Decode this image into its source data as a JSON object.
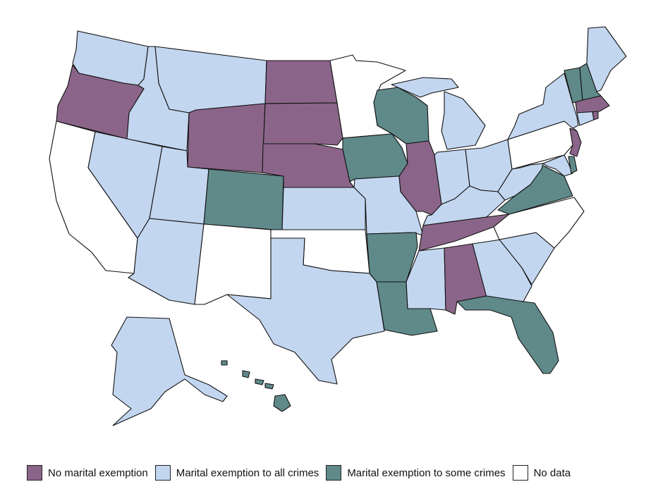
{
  "colors": {
    "none": "#8B6589",
    "all": "#C3D6F0",
    "some": "#60898A",
    "nodata": "#FFFFFF"
  },
  "legend": [
    {
      "key": "none",
      "label": "No marital exemption"
    },
    {
      "key": "all",
      "label": "Marital exemption to all crimes"
    },
    {
      "key": "some",
      "label": "Marital exemption to some crimes"
    },
    {
      "key": "nodata",
      "label": "No data"
    }
  ],
  "states": {
    "WA": "all",
    "OR": "none",
    "CA": "nodata",
    "NV": "all",
    "ID": "all",
    "MT": "all",
    "WY": "none",
    "UT": "all",
    "AZ": "all",
    "NM": "nodata",
    "CO": "some",
    "ND": "none",
    "SD": "none",
    "NE": "none",
    "KS": "all",
    "OK": "nodata",
    "TX": "all",
    "MN": "nodata",
    "IA": "some",
    "MO": "all",
    "AR": "some",
    "LA": "some",
    "WI": "some",
    "IL": "none",
    "MI": "all",
    "IN": "all",
    "OH": "all",
    "KY": "all",
    "TN": "none",
    "MS": "all",
    "AL": "none",
    "GA": "all",
    "FL": "some",
    "SC": "all",
    "NC": "nodata",
    "VA": "some",
    "WV": "all",
    "MD": "all",
    "DE": "some",
    "PA": "nodata",
    "NJ": "none",
    "NY": "all",
    "CT": "all",
    "RI": "none",
    "MA": "none",
    "VT": "some",
    "NH": "some",
    "ME": "all",
    "AK": "all",
    "HI": "some"
  }
}
